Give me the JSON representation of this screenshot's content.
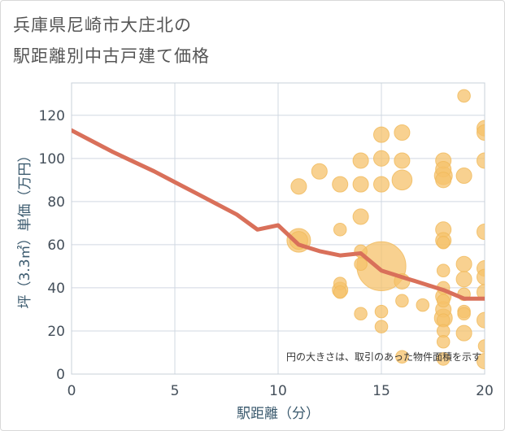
{
  "title": {
    "line1": "兵庫県尼崎市大庄北の",
    "line2": "駅距離別中古戸建て価格"
  },
  "chart_data": {
    "type": "scatter",
    "xlabel": "駅距離（分）",
    "ylabel": "坪（3.3㎡）単価（万円）",
    "xlim": [
      0,
      20
    ],
    "ylim": [
      0,
      135
    ],
    "x_ticks": [
      0,
      5,
      10,
      15,
      20
    ],
    "y_ticks": [
      0,
      20,
      40,
      60,
      80,
      100,
      120
    ],
    "grid": true,
    "note": "円の大きさは、取引のあった物件面積を示す",
    "colors": {
      "bubble": "#f5c26b",
      "line": "#d9705a",
      "grid": "#d0d8e2"
    },
    "trend_line": {
      "name": "平均",
      "x": [
        0,
        1,
        2,
        3,
        4,
        5,
        6,
        7,
        8,
        9,
        10,
        11,
        12,
        13,
        14,
        15,
        16,
        17,
        18,
        19,
        20
      ],
      "y": [
        113,
        108,
        103,
        98.5,
        94,
        89,
        84,
        79,
        74,
        67,
        69,
        60,
        57,
        55,
        56,
        48,
        45,
        42,
        39,
        35,
        35
      ]
    },
    "points": [
      {
        "x": 11,
        "y": 87,
        "s": 3
      },
      {
        "x": 11,
        "y": 62,
        "s": 7
      },
      {
        "x": 11,
        "y": 62,
        "s": 4
      },
      {
        "x": 12,
        "y": 94,
        "s": 3
      },
      {
        "x": 13,
        "y": 88,
        "s": 3
      },
      {
        "x": 13,
        "y": 67,
        "s": 2
      },
      {
        "x": 13,
        "y": 42,
        "s": 2
      },
      {
        "x": 13,
        "y": 39,
        "s": 3
      },
      {
        "x": 13,
        "y": 38,
        "s": 2
      },
      {
        "x": 14,
        "y": 99,
        "s": 3
      },
      {
        "x": 14,
        "y": 88,
        "s": 3
      },
      {
        "x": 14,
        "y": 73,
        "s": 3
      },
      {
        "x": 14,
        "y": 57,
        "s": 2
      },
      {
        "x": 14,
        "y": 51,
        "s": 2
      },
      {
        "x": 14,
        "y": 28,
        "s": 2
      },
      {
        "x": 15,
        "y": 111,
        "s": 3
      },
      {
        "x": 15,
        "y": 100,
        "s": 3
      },
      {
        "x": 15,
        "y": 88,
        "s": 3
      },
      {
        "x": 15,
        "y": 50,
        "s": 30
      },
      {
        "x": 15,
        "y": 29,
        "s": 2
      },
      {
        "x": 15,
        "y": 22,
        "s": 2
      },
      {
        "x": 16,
        "y": 112,
        "s": 3
      },
      {
        "x": 16,
        "y": 99,
        "s": 3
      },
      {
        "x": 16,
        "y": 90,
        "s": 5
      },
      {
        "x": 16,
        "y": 43,
        "s": 3
      },
      {
        "x": 16,
        "y": 34,
        "s": 2
      },
      {
        "x": 16,
        "y": 8,
        "s": 2
      },
      {
        "x": 17,
        "y": 32,
        "s": 2
      },
      {
        "x": 18,
        "y": 99,
        "s": 3
      },
      {
        "x": 18,
        "y": 95,
        "s": 3
      },
      {
        "x": 18,
        "y": 92,
        "s": 4
      },
      {
        "x": 18,
        "y": 90,
        "s": 3
      },
      {
        "x": 18,
        "y": 67,
        "s": 3
      },
      {
        "x": 18,
        "y": 62,
        "s": 3
      },
      {
        "x": 18,
        "y": 61,
        "s": 2
      },
      {
        "x": 18,
        "y": 48,
        "s": 2
      },
      {
        "x": 18,
        "y": 40,
        "s": 2
      },
      {
        "x": 18,
        "y": 36,
        "s": 3
      },
      {
        "x": 18,
        "y": 34,
        "s": 2
      },
      {
        "x": 18,
        "y": 30,
        "s": 3
      },
      {
        "x": 18,
        "y": 26,
        "s": 4
      },
      {
        "x": 18,
        "y": 25,
        "s": 2
      },
      {
        "x": 18,
        "y": 20,
        "s": 2
      },
      {
        "x": 18,
        "y": 15,
        "s": 2
      },
      {
        "x": 18,
        "y": 7,
        "s": 2
      },
      {
        "x": 19,
        "y": 129,
        "s": 2
      },
      {
        "x": 19,
        "y": 92,
        "s": 3
      },
      {
        "x": 19,
        "y": 51,
        "s": 3
      },
      {
        "x": 19,
        "y": 44,
        "s": 3
      },
      {
        "x": 19,
        "y": 37,
        "s": 2
      },
      {
        "x": 19,
        "y": 29,
        "s": 2
      },
      {
        "x": 19,
        "y": 28,
        "s": 2
      },
      {
        "x": 19,
        "y": 19,
        "s": 3
      },
      {
        "x": 20,
        "y": 114,
        "s": 3
      },
      {
        "x": 20,
        "y": 112,
        "s": 3
      },
      {
        "x": 20,
        "y": 99,
        "s": 3
      },
      {
        "x": 20,
        "y": 66,
        "s": 3
      },
      {
        "x": 20,
        "y": 49,
        "s": 3
      },
      {
        "x": 20,
        "y": 45,
        "s": 3
      },
      {
        "x": 20,
        "y": 38,
        "s": 3
      },
      {
        "x": 20,
        "y": 25,
        "s": 3
      },
      {
        "x": 20,
        "y": 13,
        "s": 2
      },
      {
        "x": 20,
        "y": 6,
        "s": 3
      }
    ]
  }
}
